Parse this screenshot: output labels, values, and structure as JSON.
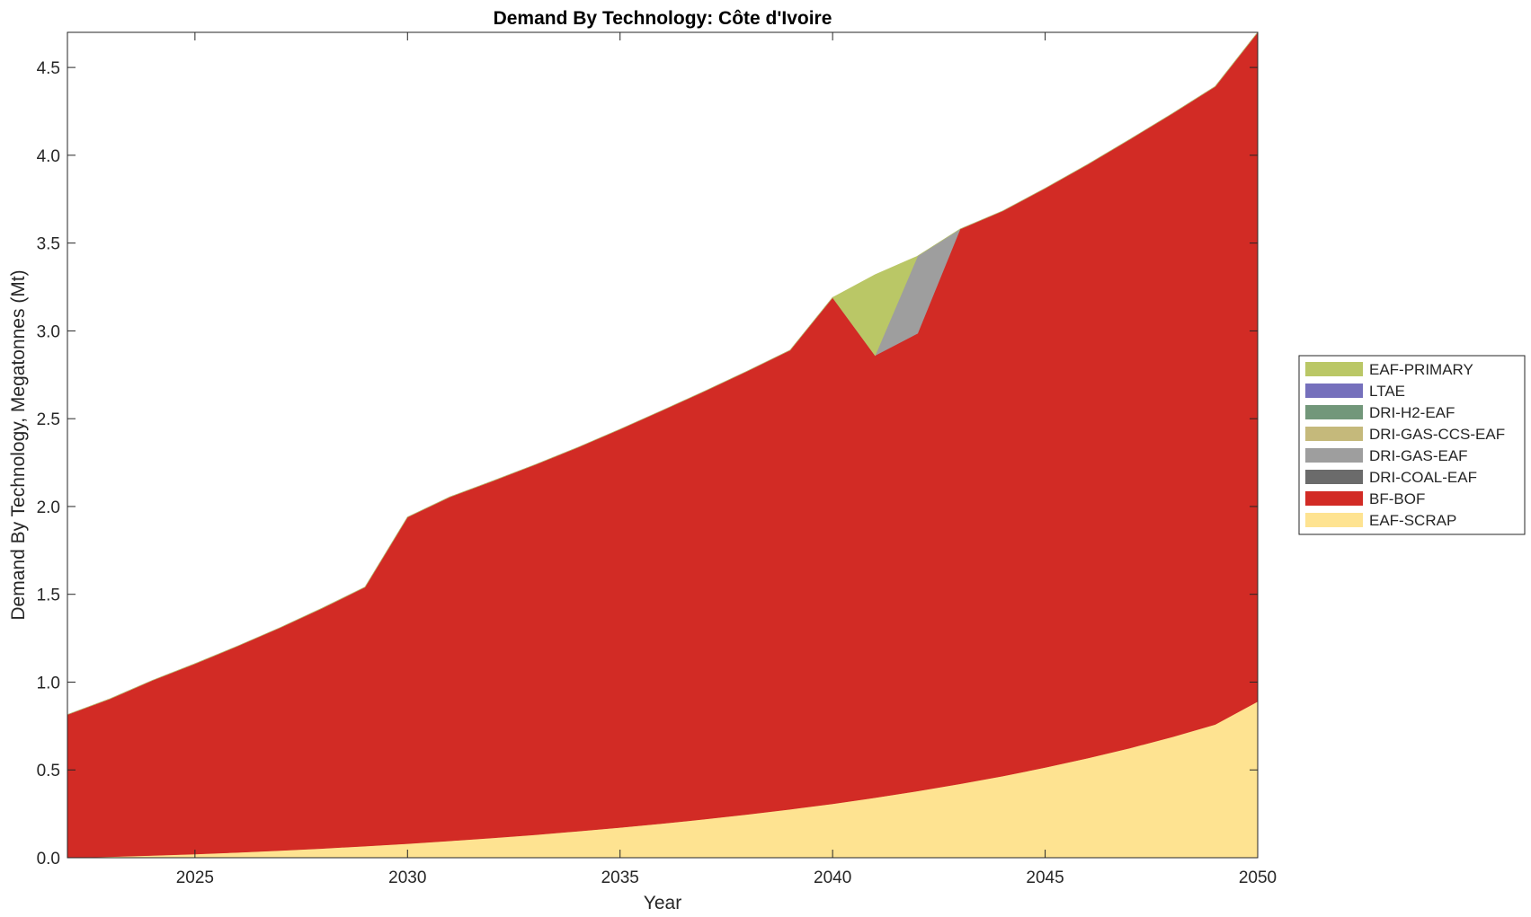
{
  "chart_data": {
    "type": "area",
    "stacked": true,
    "title": "Demand By Technology: Côte d'Ivoire",
    "xlabel": "Year",
    "ylabel": "Demand By Technology, Megatonnes (Mt)",
    "xlim": [
      2022,
      2050
    ],
    "ylim": [
      0,
      4.7
    ],
    "xticks": [
      2025,
      2030,
      2035,
      2040,
      2045,
      2050
    ],
    "xtick_labels": [
      "2025",
      "2030",
      "2035",
      "2040",
      "2045",
      "2050"
    ],
    "yticks": [
      0,
      0.5,
      1,
      1.5,
      2,
      2.5,
      3,
      3.5,
      4,
      4.5
    ],
    "ytick_labels": [
      "0.0",
      "0.5",
      "1.0",
      "1.5",
      "2.0",
      "2.5",
      "3.0",
      "3.5",
      "4.0",
      "4.5"
    ],
    "grid": false,
    "legend_position": "right",
    "x": [
      2022,
      2023,
      2024,
      2025,
      2026,
      2027,
      2028,
      2029,
      2030,
      2031,
      2032,
      2033,
      2034,
      2035,
      2036,
      2037,
      2038,
      2039,
      2040,
      2041,
      2042,
      2043,
      2044,
      2045,
      2046,
      2047,
      2048,
      2049,
      2050
    ],
    "series": [
      {
        "name": "EAF-SCRAP",
        "color": "#FEE391",
        "values": [
          0.0,
          0.006,
          0.013,
          0.021,
          0.03,
          0.041,
          0.053,
          0.066,
          0.08,
          0.096,
          0.113,
          0.131,
          0.151,
          0.172,
          0.195,
          0.22,
          0.247,
          0.276,
          0.307,
          0.342,
          0.38,
          0.421,
          0.465,
          0.514,
          0.567,
          0.625,
          0.689,
          0.759,
          0.89
        ]
      },
      {
        "name": "BF-BOF",
        "color": "#D22B25",
        "values": [
          0.815,
          0.899,
          0.997,
          1.084,
          1.175,
          1.269,
          1.369,
          1.475,
          1.86,
          1.959,
          2.032,
          2.107,
          2.185,
          2.268,
          2.353,
          2.438,
          2.525,
          2.614,
          2.883,
          2.518,
          2.606,
          3.159,
          3.218,
          3.298,
          3.381,
          3.467,
          3.55,
          3.633,
          3.81
        ]
      },
      {
        "name": "DRI-COAL-EAF",
        "color": "#6B6B6B",
        "values": [
          0,
          0,
          0,
          0,
          0,
          0,
          0,
          0,
          0,
          0,
          0,
          0,
          0,
          0,
          0,
          0,
          0,
          0,
          0,
          0,
          0,
          0,
          0,
          0,
          0,
          0,
          0,
          0,
          0
        ]
      },
      {
        "name": "DRI-GAS-EAF",
        "color": "#9E9E9E",
        "values": [
          0,
          0,
          0,
          0,
          0,
          0,
          0,
          0,
          0,
          0,
          0,
          0,
          0,
          0,
          0,
          0,
          0,
          0,
          0,
          0,
          0.44,
          0,
          0,
          0,
          0,
          0,
          0,
          0,
          0
        ]
      },
      {
        "name": "DRI-GAS-CCS-EAF",
        "color": "#C5B97B",
        "values": [
          0,
          0,
          0,
          0,
          0,
          0,
          0,
          0,
          0,
          0,
          0,
          0,
          0,
          0,
          0,
          0,
          0,
          0,
          0,
          0,
          0,
          0,
          0,
          0,
          0,
          0,
          0,
          0,
          0
        ]
      },
      {
        "name": "DRI-H2-EAF",
        "color": "#72977A",
        "values": [
          0,
          0,
          0,
          0,
          0,
          0,
          0,
          0,
          0,
          0,
          0,
          0,
          0,
          0,
          0,
          0,
          0,
          0,
          0,
          0,
          0,
          0,
          0,
          0,
          0,
          0,
          0,
          0,
          0
        ]
      },
      {
        "name": "LTAE",
        "color": "#7570BC",
        "values": [
          0,
          0,
          0,
          0,
          0,
          0,
          0,
          0,
          0,
          0,
          0,
          0,
          0,
          0,
          0,
          0,
          0,
          0,
          0,
          0,
          0,
          0,
          0,
          0,
          0,
          0,
          0,
          0,
          0
        ]
      },
      {
        "name": "EAF-PRIMARY",
        "color": "#BAC766",
        "values": [
          0,
          0,
          0,
          0,
          0,
          0,
          0,
          0,
          0,
          0,
          0,
          0,
          0,
          0,
          0,
          0,
          0,
          0,
          0,
          0.46,
          0,
          0,
          0,
          0,
          0,
          0,
          0,
          0,
          0
        ]
      }
    ],
    "legend_order": [
      "EAF-PRIMARY",
      "LTAE",
      "DRI-H2-EAF",
      "DRI-GAS-CCS-EAF",
      "DRI-GAS-EAF",
      "DRI-COAL-EAF",
      "BF-BOF",
      "EAF-SCRAP"
    ]
  }
}
